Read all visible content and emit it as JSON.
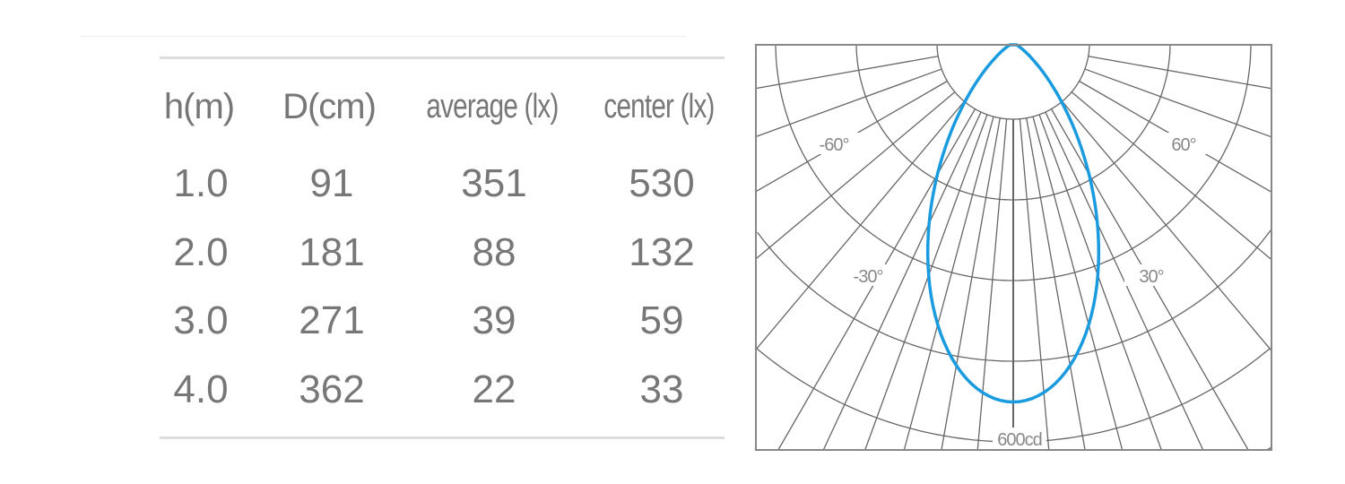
{
  "table": {
    "headers": [
      "h(m)",
      "D(cm)",
      "average (lx)",
      "center (lx)"
    ],
    "rows": [
      [
        "1.0",
        "91",
        "351",
        "530"
      ],
      [
        "2.0",
        "181",
        "88",
        "132"
      ],
      [
        "3.0",
        "271",
        "39",
        "59"
      ],
      [
        "4.0",
        "362",
        "22",
        "33"
      ]
    ]
  },
  "chart_data": {
    "type": "polar",
    "angle_labels": [
      "-60°",
      "60°",
      "-30°",
      "30°"
    ],
    "radial_label": "600cd",
    "radial_max": 600,
    "grid": true,
    "series_color": "#1a9be0",
    "grid_color": "#666666",
    "series": [
      {
        "angles_deg": [
          -60,
          -50,
          -40,
          -30,
          -20,
          -10,
          0,
          10,
          20,
          30,
          40,
          50,
          60
        ],
        "values_cd": [
          8,
          40,
          110,
          227,
          375,
          494,
          540,
          494,
          375,
          227,
          110,
          40,
          8
        ]
      }
    ]
  }
}
